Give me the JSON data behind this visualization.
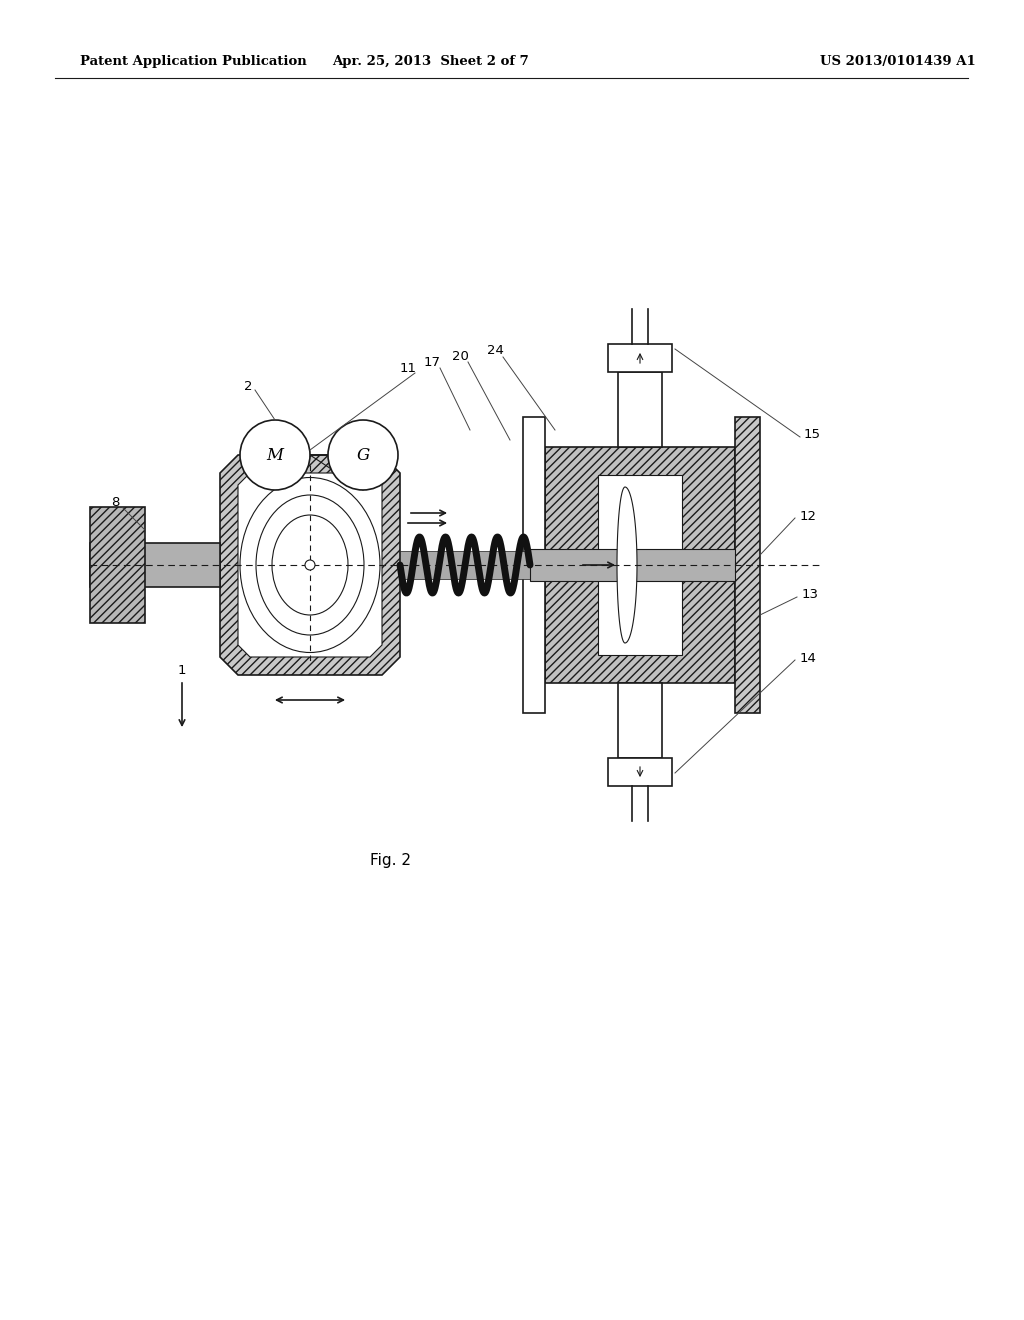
{
  "bg_color": "#ffffff",
  "line_color": "#1a1a1a",
  "header_left": "Patent Application Publication",
  "header_center": "Apr. 25, 2013  Sheet 2 of 7",
  "header_right": "US 2013/0101439 A1",
  "fig_label": "Fig. 2",
  "figw": 10.24,
  "figh": 13.2,
  "dpi": 100
}
